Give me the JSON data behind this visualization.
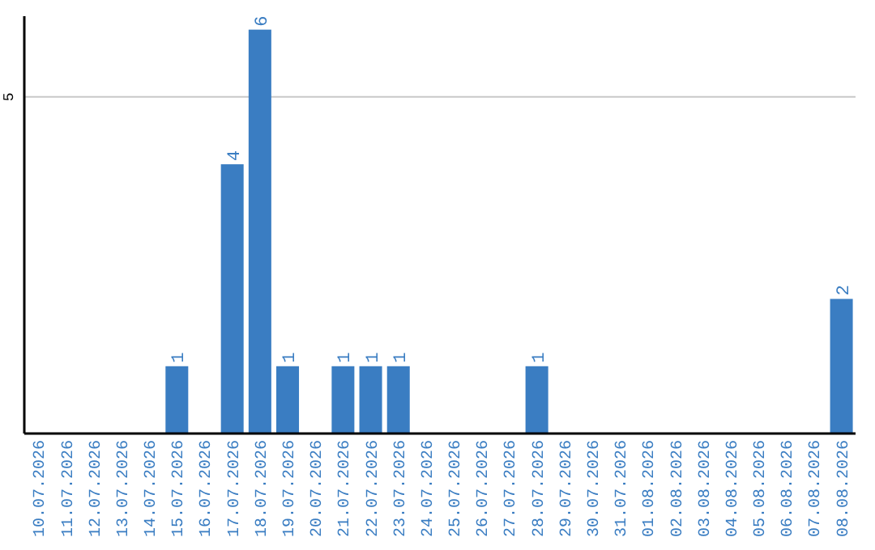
{
  "chart_data": {
    "type": "bar",
    "categories": [
      "10.07.2026",
      "11.07.2026",
      "12.07.2026",
      "13.07.2026",
      "14.07.2026",
      "15.07.2026",
      "16.07.2026",
      "17.07.2026",
      "18.07.2026",
      "19.07.2026",
      "20.07.2026",
      "21.07.2026",
      "22.07.2026",
      "23.07.2026",
      "24.07.2026",
      "25.07.2026",
      "26.07.2026",
      "27.07.2026",
      "28.07.2026",
      "29.07.2026",
      "30.07.2026",
      "31.07.2026",
      "01.08.2026",
      "02.08.2026",
      "03.08.2026",
      "04.08.2026",
      "05.08.2026",
      "06.08.2026",
      "07.08.2026",
      "08.08.2026"
    ],
    "values": [
      0,
      0,
      0,
      0,
      0,
      1,
      0,
      4,
      6,
      1,
      0,
      1,
      1,
      1,
      0,
      0,
      0,
      0,
      1,
      0,
      0,
      0,
      0,
      0,
      0,
      0,
      0,
      0,
      0,
      2
    ],
    "value_labels": [
      null,
      null,
      null,
      null,
      null,
      "1",
      null,
      "4",
      "6",
      "1",
      null,
      "1",
      "1",
      "1",
      null,
      null,
      null,
      null,
      "1",
      null,
      null,
      null,
      null,
      null,
      null,
      null,
      null,
      null,
      null,
      "2"
    ],
    "color": "#3a7dc2",
    "ylim": [
      0,
      6.2
    ],
    "yticks": [
      5
    ],
    "grid": "y"
  }
}
